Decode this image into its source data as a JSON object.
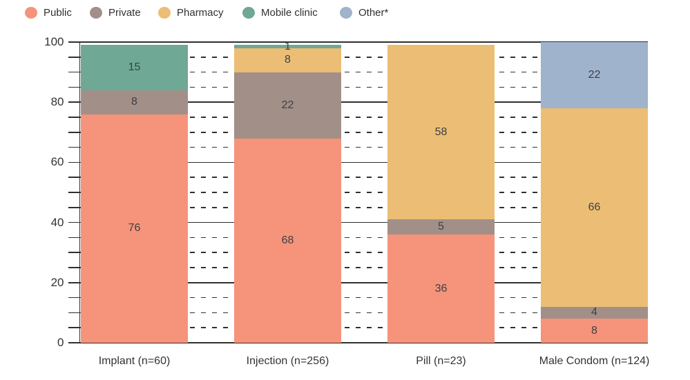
{
  "legend": {
    "items": [
      {
        "label": "Public",
        "color": "#F5937B"
      },
      {
        "label": "Private",
        "color": "#A28F88"
      },
      {
        "label": "Pharmacy",
        "color": "#ECBD74"
      },
      {
        "label": "Mobile clinic",
        "color": "#6FA894"
      },
      {
        "label": "Other*",
        "color": "#9FB3CC"
      }
    ]
  },
  "chart_data": {
    "type": "bar",
    "variant": "stacked-vertical",
    "title": "",
    "xlabel": "",
    "ylabel": "",
    "categories": [
      "Implant (n=60)",
      "Injection (n=256)",
      "Pill (n=23)",
      "Male Condom (n=124)"
    ],
    "series": [
      {
        "name": "Public",
        "color": "#F5937B",
        "values": [
          76,
          68,
          36,
          8
        ]
      },
      {
        "name": "Private",
        "color": "#A28F88",
        "values": [
          8,
          22,
          5,
          4
        ]
      },
      {
        "name": "Pharmacy",
        "color": "#ECBD74",
        "values": [
          0,
          8,
          58,
          66
        ]
      },
      {
        "name": "Mobile clinic",
        "color": "#6FA894",
        "values": [
          15,
          1,
          0,
          0
        ]
      },
      {
        "name": "Other*",
        "color": "#9FB3CC",
        "values": [
          0,
          0,
          0,
          22
        ]
      }
    ],
    "ylim": [
      0,
      100
    ],
    "yticks": [
      0,
      20,
      40,
      60,
      80,
      100
    ],
    "minor_tick_step": 5,
    "gridlines": {
      "major": "solid",
      "minor": "dashed"
    },
    "legend_position": "top-left",
    "show_segment_labels": true
  },
  "colors": {
    "grid": "#2E2E2E",
    "value_label": "#3C4043",
    "axis_label": "#333333",
    "background": "#FFFFFF"
  }
}
